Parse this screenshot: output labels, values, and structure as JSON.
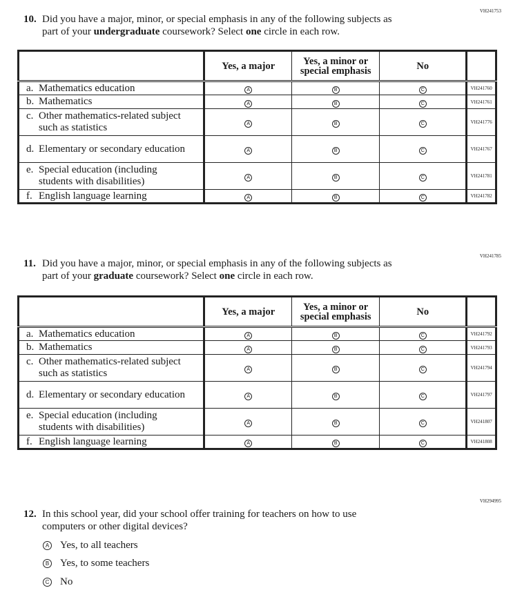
{
  "q10": {
    "code": "VH241753",
    "number": "10.",
    "line1": "Did you have a major, minor, or special emphasis in any of the following subjects as",
    "line2_pre": "part of your ",
    "line2_bold": "undergraduate",
    "line2_mid": " coursework? Select ",
    "line2_bold2": "one",
    "line2_post": " circle in each row.",
    "headers": [
      "Yes, a major",
      "Yes, a minor or special emphasis",
      "No"
    ],
    "rows": [
      {
        "letter": "a.",
        "label": "Mathematics education",
        "code": "VH241760"
      },
      {
        "letter": "b.",
        "label": "Mathematics",
        "code": "VH241761"
      },
      {
        "letter": "c.",
        "label": "Other mathematics-related subject such as statistics",
        "code": "VH241776"
      },
      {
        "letter": "d.",
        "label": "Elementary or secondary education",
        "code": "VH241767"
      },
      {
        "letter": "e.",
        "label": "Special education (including students with disabilities)",
        "code": "VH241781"
      },
      {
        "letter": "f.",
        "label": "English language learning",
        "code": "VH241782"
      }
    ]
  },
  "q11": {
    "code": "VH241785",
    "number": "11.",
    "line1": "Did you have a major, minor, or special emphasis in any of the following subjects as",
    "line2_pre": "part of your ",
    "line2_bold": "graduate",
    "line2_mid": " coursework? Select ",
    "line2_bold2": "one",
    "line2_post": " circle in each row.",
    "headers": [
      "Yes, a major",
      "Yes, a minor or special emphasis",
      "No"
    ],
    "rows": [
      {
        "letter": "a.",
        "label": "Mathematics education",
        "code": "VH241792"
      },
      {
        "letter": "b.",
        "label": "Mathematics",
        "code": "VH241793"
      },
      {
        "letter": "c.",
        "label": "Other mathematics-related subject such as statistics",
        "code": "VH241794"
      },
      {
        "letter": "d.",
        "label": "Elementary or secondary education",
        "code": "VH241797"
      },
      {
        "letter": "e.",
        "label": "Special education (including students with disabilities)",
        "code": "VH241807"
      },
      {
        "letter": "f.",
        "label": "English language learning",
        "code": "VH241808"
      }
    ]
  },
  "bubble_letters": [
    "A",
    "B",
    "C"
  ],
  "q12": {
    "code": "VH294995",
    "number": "12.",
    "line1": "In this school year, did your school offer training for teachers on how to use",
    "line2": "computers or other digital devices?",
    "options": [
      "Yes, to all teachers",
      "Yes, to some teachers",
      "No"
    ]
  }
}
